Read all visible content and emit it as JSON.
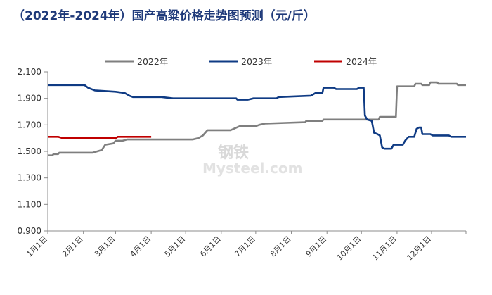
{
  "title": "（2022年-2024年）国产高粱价格走势图预测（元/斤）",
  "watermark": {
    "cn": "钢铁",
    "en": "Mysteel.com",
    "color": "#d9d9d9"
  },
  "chart_data": {
    "type": "line",
    "title": "（2022年-2024年）国产高粱价格走势图预测（元/斤）",
    "xlabel": "",
    "ylabel": "",
    "ylim": [
      0.9,
      2.1
    ],
    "yticks": [
      "0.900",
      "1.100",
      "1.300",
      "1.500",
      "1.700",
      "1.900",
      "2.100"
    ],
    "ytick_values": [
      0.9,
      1.1,
      1.3,
      1.5,
      1.7,
      1.9,
      2.1
    ],
    "xlim": [
      1,
      365
    ],
    "xticks": [
      "1月1日",
      "2月1日",
      "3月1日",
      "4月1日",
      "5月1日",
      "6月1日",
      "7月1日",
      "8月1日",
      "9月1日",
      "10月1日",
      "11月1日",
      "12月1日"
    ],
    "xtick_values": [
      1,
      32,
      60,
      91,
      121,
      152,
      182,
      213,
      244,
      274,
      305,
      335
    ],
    "grid": false,
    "legend": "top",
    "series": [
      {
        "name": "2022年",
        "color": "#7f7f7f",
        "points": [
          [
            1,
            1.47
          ],
          [
            5,
            1.47
          ],
          [
            6,
            1.48
          ],
          [
            10,
            1.48
          ],
          [
            11,
            1.49
          ],
          [
            40,
            1.49
          ],
          [
            44,
            1.5
          ],
          [
            48,
            1.51
          ],
          [
            51,
            1.55
          ],
          [
            58,
            1.56
          ],
          [
            60,
            1.58
          ],
          [
            66,
            1.58
          ],
          [
            70,
            1.59
          ],
          [
            127,
            1.59
          ],
          [
            132,
            1.6
          ],
          [
            136,
            1.62
          ],
          [
            140,
            1.66
          ],
          [
            160,
            1.66
          ],
          [
            168,
            1.69
          ],
          [
            182,
            1.69
          ],
          [
            185,
            1.7
          ],
          [
            190,
            1.71
          ],
          [
            225,
            1.72
          ],
          [
            226,
            1.73
          ],
          [
            240,
            1.73
          ],
          [
            241,
            1.74
          ],
          [
            289,
            1.74
          ],
          [
            290,
            1.76
          ],
          [
            304,
            1.76
          ],
          [
            305,
            1.99
          ],
          [
            320,
            1.99
          ],
          [
            321,
            2.01
          ],
          [
            326,
            2.01
          ],
          [
            327,
            2.0
          ],
          [
            333,
            2.0
          ],
          [
            334,
            2.02
          ],
          [
            340,
            2.02
          ],
          [
            341,
            2.01
          ],
          [
            357,
            2.01
          ],
          [
            358,
            2.0
          ],
          [
            365,
            2.0
          ]
        ]
      },
      {
        "name": "2023年",
        "color": "#0f3b84",
        "points": [
          [
            1,
            2.0
          ],
          [
            33,
            2.0
          ],
          [
            36,
            1.98
          ],
          [
            42,
            1.96
          ],
          [
            60,
            1.95
          ],
          [
            68,
            1.94
          ],
          [
            72,
            1.92
          ],
          [
            75,
            1.91
          ],
          [
            100,
            1.91
          ],
          [
            110,
            1.9
          ],
          [
            165,
            1.9
          ],
          [
            166,
            1.89
          ],
          [
            175,
            1.89
          ],
          [
            180,
            1.9
          ],
          [
            200,
            1.9
          ],
          [
            202,
            1.91
          ],
          [
            230,
            1.92
          ],
          [
            234,
            1.94
          ],
          [
            240,
            1.94
          ],
          [
            241,
            1.98
          ],
          [
            250,
            1.98
          ],
          [
            252,
            1.97
          ],
          [
            270,
            1.97
          ],
          [
            272,
            1.98
          ],
          [
            276,
            1.98
          ],
          [
            277,
            1.77
          ],
          [
            279,
            1.74
          ],
          [
            283,
            1.73
          ],
          [
            285,
            1.64
          ],
          [
            288,
            1.63
          ],
          [
            290,
            1.62
          ],
          [
            292,
            1.53
          ],
          [
            294,
            1.52
          ],
          [
            300,
            1.52
          ],
          [
            302,
            1.55
          ],
          [
            310,
            1.55
          ],
          [
            312,
            1.58
          ],
          [
            315,
            1.61
          ],
          [
            320,
            1.61
          ],
          [
            322,
            1.67
          ],
          [
            324,
            1.68
          ],
          [
            326,
            1.68
          ],
          [
            327,
            1.63
          ],
          [
            334,
            1.63
          ],
          [
            336,
            1.62
          ],
          [
            350,
            1.62
          ],
          [
            352,
            1.61
          ],
          [
            365,
            1.61
          ]
        ]
      },
      {
        "name": "2024年",
        "color": "#c00000",
        "points": [
          [
            1,
            1.61
          ],
          [
            10,
            1.61
          ],
          [
            14,
            1.6
          ],
          [
            55,
            1.6
          ],
          [
            60,
            1.6
          ],
          [
            62,
            1.61
          ],
          [
            91,
            1.61
          ]
        ]
      }
    ]
  }
}
